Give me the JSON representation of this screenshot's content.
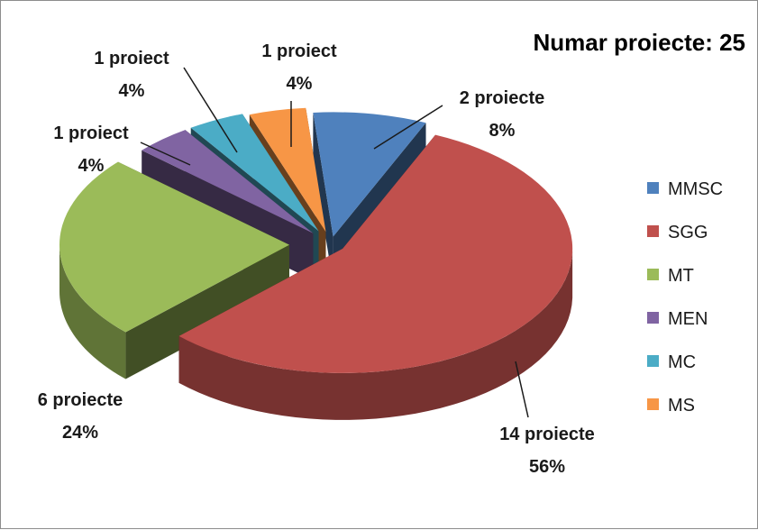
{
  "chart_data": {
    "type": "pie",
    "title": "Numar proiecte: 25",
    "categories": [
      "MMSC",
      "SGG",
      "MT",
      "MEN",
      "MC",
      "MS"
    ],
    "values": [
      2,
      14,
      6,
      1,
      1,
      1
    ],
    "percentages": [
      "8%",
      "56%",
      "24%",
      "4%",
      "4%",
      "4%"
    ],
    "count_labels": [
      "2 proiecte",
      "14 proiecte",
      "6 proiecte",
      "1 proiect",
      "1 proiect",
      "1 proiect"
    ],
    "colors": [
      "#4f81bd",
      "#c0504d",
      "#9bbb59",
      "#8064a2",
      "#4bacc6",
      "#f79646"
    ],
    "legend": {
      "position": "right",
      "entries": [
        {
          "name": "MMSC",
          "color": "#4f81bd"
        },
        {
          "name": "SGG",
          "color": "#c0504d"
        },
        {
          "name": "MT",
          "color": "#9bbb59"
        },
        {
          "name": "MEN",
          "color": "#8064a2"
        },
        {
          "name": "MC",
          "color": "#4bacc6"
        },
        {
          "name": "MS",
          "color": "#f79646"
        }
      ]
    },
    "style": "3d-exploded-pie"
  }
}
